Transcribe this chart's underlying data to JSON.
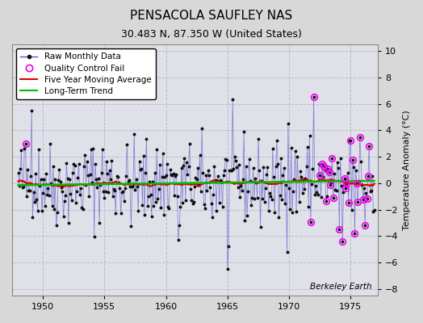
{
  "title": "PENSACOLA SAUFLEY NAS",
  "subtitle": "30.483 N, 87.350 W (United States)",
  "ylabel": "Temperature Anomaly (°C)",
  "watermark": "Berkeley Earth",
  "xlim": [
    1947.5,
    1977.2
  ],
  "ylim": [
    -8.5,
    10.5
  ],
  "yticks": [
    -8,
    -6,
    -4,
    -2,
    0,
    2,
    4,
    6,
    8,
    10
  ],
  "xticks": [
    1950,
    1955,
    1960,
    1965,
    1970,
    1975
  ],
  "bg_color": "#d8d8d8",
  "plot_bg": "#e0e0e8",
  "grid_color": "#b8b8c8",
  "raw_color": "#5555cc",
  "raw_alpha": 0.7,
  "raw_marker_color": "#111111",
  "moving_avg_color": "#dd0000",
  "trend_color": "#00bb00",
  "qc_fail_color": "#ee00ee",
  "title_fontsize": 11,
  "subtitle_fontsize": 9,
  "ylabel_fontsize": 8,
  "tick_fontsize": 8,
  "legend_fontsize": 7.5,
  "watermark_fontsize": 7.5
}
